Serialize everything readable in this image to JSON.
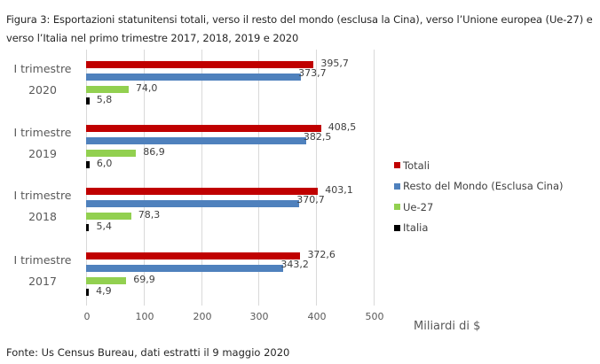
{
  "title": "Figura 3: Esportazioni statunitensi totali, verso il resto del mondo (esclusa la Cina), verso l’Unione europea (Ue-27) e verso l’Italia nel primo trimestre 2017, 2018, 2019 e 2020",
  "source": "Fonte: Us Census Bureau, dati estratti il 9 maggio 2020",
  "axis": {
    "unit_label": "Miliardi di $",
    "ticks": [
      "0",
      "100",
      "200",
      "300",
      "400",
      "500"
    ]
  },
  "colors": {
    "totali": "#C00000",
    "resto": "#4F81BD",
    "ue": "#92D050",
    "italia": "#000000"
  },
  "legend": [
    {
      "label": "Totali",
      "color": "#C00000"
    },
    {
      "label": "Resto del Mondo (Esclusa Cina)",
      "color": "#4F81BD"
    },
    {
      "label": "Ue-27",
      "color": "#92D050"
    },
    {
      "label": "Italia",
      "color": "#000000"
    }
  ],
  "groups": [
    {
      "line1": "I trimestre",
      "line2": "2020",
      "labels": [
        "395,7",
        "373,7",
        "74,0",
        "5,8"
      ]
    },
    {
      "line1": "I trimestre",
      "line2": "2019",
      "labels": [
        "408,5",
        "382,5",
        "86,9",
        "6,0"
      ]
    },
    {
      "line1": "I trimestre",
      "line2": "2018",
      "labels": [
        "403,1",
        "370,7",
        "78,3",
        "5,4"
      ]
    },
    {
      "line1": "I trimestre",
      "line2": "2017",
      "labels": [
        "372,6",
        "343,2",
        "69,9",
        "4,9"
      ]
    }
  ],
  "chart_data": {
    "type": "bar",
    "orientation": "horizontal",
    "title": "Figura 3: Esportazioni statunitensi totali, verso il resto del mondo (esclusa la Cina), verso l’Unione europea (Ue-27) e verso l’Italia nel primo trimestre 2017, 2018, 2019 e 2020",
    "categories": [
      "I trimestre 2020",
      "I trimestre 2019",
      "I trimestre 2018",
      "I trimestre 2017"
    ],
    "series": [
      {
        "name": "Totali",
        "color": "#C00000",
        "values": [
          395.7,
          408.5,
          403.1,
          372.6
        ]
      },
      {
        "name": "Resto del Mondo (Esclusa Cina)",
        "color": "#4F81BD",
        "values": [
          373.7,
          382.5,
          370.7,
          343.2
        ]
      },
      {
        "name": "Ue-27",
        "color": "#92D050",
        "values": [
          74.0,
          86.9,
          78.3,
          69.9
        ]
      },
      {
        "name": "Italia",
        "color": "#000000",
        "values": [
          5.8,
          6.0,
          5.4,
          4.9
        ]
      }
    ],
    "xlabel": "Miliardi di $",
    "ylabel": "",
    "xlim": [
      0,
      500
    ],
    "xticks": [
      0,
      100,
      200,
      300,
      400,
      500
    ],
    "grid": true,
    "legend_position": "right",
    "data_labels": true,
    "source": "Fonte: Us Census Bureau, dati estratti il 9 maggio 2020"
  }
}
